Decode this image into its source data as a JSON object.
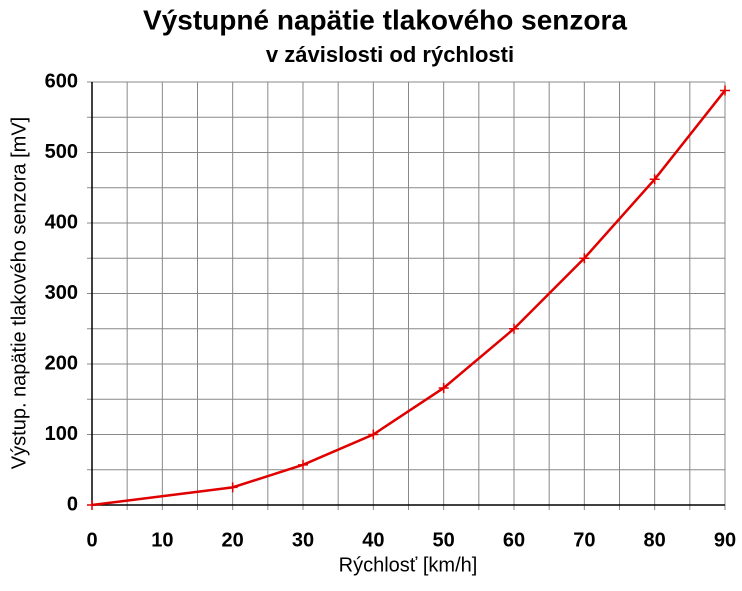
{
  "chart_data": {
    "type": "line",
    "title": "Výstupné napätie tlakového senzora",
    "subtitle": "v závislosti od rýchlosti",
    "x_label": "Rýchlosť [km/h]",
    "y_label": "Výstup. napätie tlakového senzora [mV]",
    "x": [
      0,
      20,
      30,
      40,
      50,
      60,
      70,
      80,
      90
    ],
    "series": [
      {
        "color": "#e00000",
        "values": [
          0,
          25,
          57,
          100,
          166,
          250,
          350,
          462,
          588
        ]
      }
    ],
    "xlim": [
      0,
      90
    ],
    "xticks": [
      0,
      10,
      20,
      30,
      40,
      50,
      60,
      70,
      80,
      90
    ],
    "ylim": [
      0,
      600
    ],
    "yticks": [
      0,
      100,
      200,
      300,
      400,
      500,
      600
    ],
    "grid": true
  }
}
